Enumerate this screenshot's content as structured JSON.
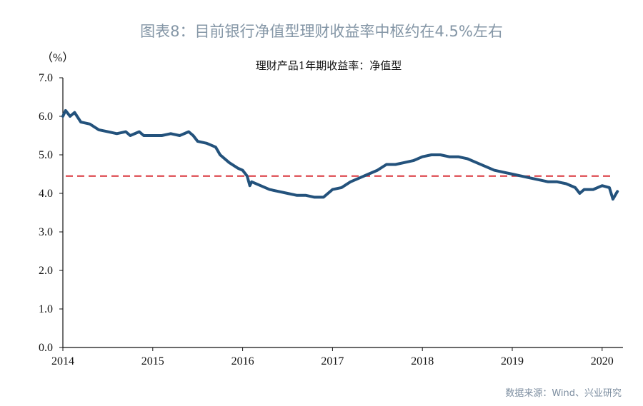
{
  "figure_title": "图表8：目前银行净值型理财收益率中枢约在4.5%左右",
  "source": "数据来源：Wind、兴业研究",
  "chart_data": {
    "type": "line",
    "title": "理财产品1年期收益率：净值型",
    "ylabel": "（%）",
    "xlabel": "",
    "xlim": [
      2014,
      2020.2
    ],
    "ylim": [
      0,
      7
    ],
    "x_ticks": [
      "2014",
      "2015",
      "2016",
      "2017",
      "2018",
      "2019",
      "2020"
    ],
    "y_ticks": [
      "0.0",
      "1.0",
      "2.0",
      "3.0",
      "4.0",
      "5.0",
      "6.0",
      "7.0"
    ],
    "grid": false,
    "legend": "none",
    "reference_line": {
      "y": 4.45,
      "style": "dashed",
      "color": "#d9343a"
    },
    "series": [
      {
        "color": "#23527c",
        "x": [
          2014.0,
          2014.03,
          2014.08,
          2014.13,
          2014.2,
          2014.3,
          2014.4,
          2014.5,
          2014.6,
          2014.7,
          2014.75,
          2014.85,
          2014.9,
          2015.0,
          2015.1,
          2015.2,
          2015.3,
          2015.4,
          2015.45,
          2015.5,
          2015.6,
          2015.7,
          2015.75,
          2015.85,
          2015.95,
          2016.0,
          2016.05,
          2016.08,
          2016.1,
          2016.2,
          2016.3,
          2016.4,
          2016.5,
          2016.6,
          2016.7,
          2016.8,
          2016.9,
          2017.0,
          2017.1,
          2017.2,
          2017.3,
          2017.4,
          2017.5,
          2017.6,
          2017.7,
          2017.8,
          2017.9,
          2018.0,
          2018.1,
          2018.2,
          2018.3,
          2018.4,
          2018.5,
          2018.6,
          2018.7,
          2018.8,
          2018.9,
          2019.0,
          2019.1,
          2019.2,
          2019.3,
          2019.4,
          2019.5,
          2019.6,
          2019.7,
          2019.75,
          2019.8,
          2019.9,
          2020.0,
          2020.08,
          2020.12,
          2020.17
        ],
        "y": [
          6.0,
          6.15,
          6.0,
          6.1,
          5.85,
          5.8,
          5.65,
          5.6,
          5.55,
          5.6,
          5.5,
          5.6,
          5.5,
          5.5,
          5.5,
          5.55,
          5.5,
          5.6,
          5.5,
          5.35,
          5.3,
          5.2,
          5.0,
          4.8,
          4.65,
          4.6,
          4.45,
          4.2,
          4.3,
          4.2,
          4.1,
          4.05,
          4.0,
          3.95,
          3.95,
          3.9,
          3.9,
          4.1,
          4.15,
          4.3,
          4.4,
          4.5,
          4.6,
          4.75,
          4.75,
          4.8,
          4.85,
          4.95,
          5.0,
          5.0,
          4.95,
          4.95,
          4.9,
          4.8,
          4.7,
          4.6,
          4.55,
          4.5,
          4.45,
          4.4,
          4.35,
          4.3,
          4.3,
          4.25,
          4.15,
          4.0,
          4.1,
          4.1,
          4.2,
          4.15,
          3.85,
          4.05
        ]
      }
    ]
  }
}
